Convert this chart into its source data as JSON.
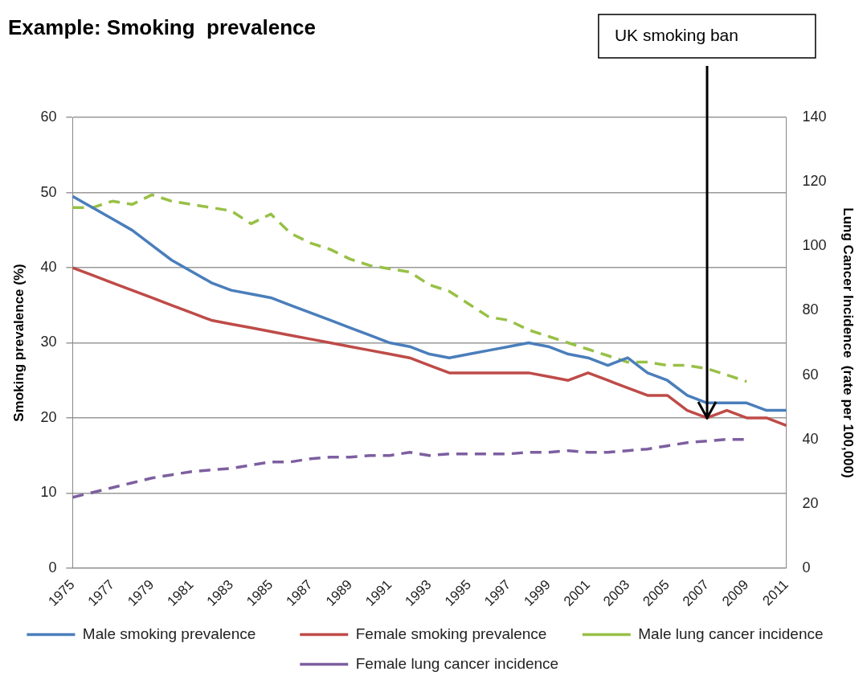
{
  "chart_data": {
    "type": "line",
    "title": "Example: Smoking  prevalence",
    "ylabel": "Smoking prevalence (%)",
    "y2label": "Lung Cancer Incidence  (rate per 100,000)",
    "categories": [
      "1975",
      null,
      "1977",
      null,
      "1979",
      null,
      "1981",
      null,
      "1983",
      null,
      "1985",
      null,
      "1987",
      null,
      "1989",
      null,
      "1991",
      null,
      "1993",
      null,
      "1995",
      null,
      "1997",
      null,
      "1999",
      null,
      "2001",
      null,
      "2003",
      null,
      "2005",
      null,
      "2007",
      null,
      "2009",
      null,
      "2011"
    ],
    "series": [
      {
        "name": "Male smoking prevalence",
        "color": "#4a7ebb",
        "line_style": "solid",
        "values": [
          49.5,
          48,
          46.5,
          45,
          43,
          41,
          39.5,
          38,
          37,
          36.5,
          36,
          35,
          34,
          33,
          32,
          31,
          30,
          29.5,
          28.5,
          28,
          28.5,
          29,
          29.5,
          30,
          29.5,
          28.5,
          28,
          27,
          28,
          26,
          25,
          23,
          22,
          22,
          22,
          21,
          21
        ]
      },
      {
        "name": "Female smoking prevalence",
        "color": "#be4b48",
        "line_style": "solid",
        "values": [
          40,
          39,
          38,
          37,
          36,
          35,
          34,
          33,
          32.5,
          32,
          31.5,
          31,
          30.5,
          30,
          29.5,
          29,
          28.5,
          28,
          27,
          26,
          26,
          26,
          26,
          26,
          25.5,
          25,
          26,
          25,
          24,
          23,
          23,
          21,
          20,
          21,
          20,
          20,
          19
        ]
      },
      {
        "name": "Male lung cancer incidence",
        "color": "#98c046",
        "line_style": "dashed",
        "axis": "y2",
        "values": [
          112,
          112,
          114,
          113,
          116,
          114,
          113,
          112,
          111,
          107,
          110,
          104,
          101,
          99,
          96,
          94,
          93,
          92,
          88,
          86,
          82,
          78,
          77,
          74,
          72,
          70,
          68,
          66,
          64,
          64,
          63,
          63,
          62,
          60,
          58,
          null,
          null
        ]
      },
      {
        "name": "Female lung cancer incidence",
        "color": "#7d5fa0",
        "line_style": "dashed",
        "axis": "y2",
        "values": [
          22,
          23.5,
          25,
          26.5,
          28,
          29,
          30,
          30.5,
          31,
          32,
          33,
          33,
          34,
          34.5,
          34.5,
          35,
          35,
          36,
          35,
          35.5,
          35.5,
          35.5,
          35.5,
          36,
          36,
          36.5,
          36,
          36,
          36.5,
          37,
          38,
          39,
          39.5,
          40,
          40,
          null,
          null
        ]
      }
    ],
    "ylim": [
      0,
      60
    ],
    "yticks": [
      0,
      10,
      20,
      30,
      40,
      50,
      60
    ],
    "y2lim": [
      0,
      140
    ],
    "y2ticks": [
      0,
      20,
      40,
      60,
      80,
      100,
      120,
      140
    ],
    "grid": "y",
    "legend": "bottom",
    "marker": "none",
    "annotations": [
      {
        "text": "UK smoking ban",
        "x": "2007",
        "y": 20
      }
    ]
  }
}
